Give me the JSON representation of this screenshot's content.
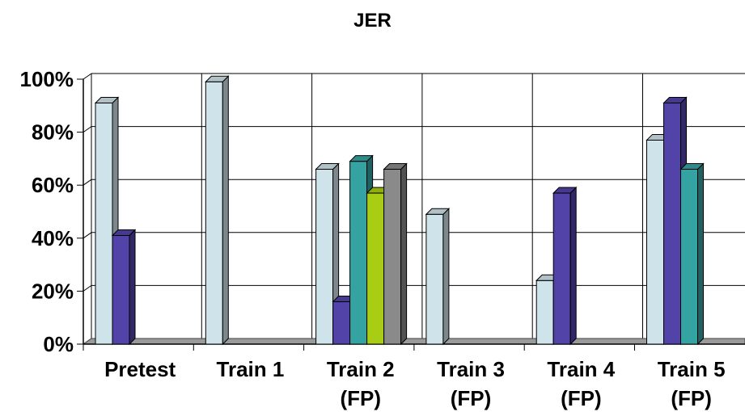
{
  "chart_data": {
    "type": "bar",
    "title": "JER",
    "xlabel": "",
    "ylabel": "",
    "ylim": [
      0,
      100
    ],
    "yticks": [
      "0%",
      "20%",
      "40%",
      "60%",
      "80%",
      "100%"
    ],
    "grid": true,
    "legend": "none",
    "categories": [
      [
        "Pretest"
      ],
      [
        "Train 1"
      ],
      [
        "Train 2",
        "(FP)"
      ],
      [
        "Train 3",
        "(FP)"
      ],
      [
        "Train 4",
        "(FP)"
      ],
      [
        "Train 5",
        "(FP)"
      ]
    ],
    "series": [
      {
        "color": "#cfe3ea",
        "values": [
          91,
          99,
          66,
          49,
          24,
          77
        ]
      },
      {
        "color": "#5243a8",
        "values": [
          41,
          0,
          16,
          0,
          57,
          91
        ]
      },
      {
        "color": "#36a3a3",
        "values": [
          0,
          0,
          69,
          0,
          0,
          66
        ]
      },
      {
        "color": "#a9cc14",
        "values": [
          0,
          0,
          57,
          0,
          0,
          0
        ]
      },
      {
        "color": "#8a8a8a",
        "values": [
          0,
          0,
          66,
          0,
          0,
          0
        ]
      }
    ]
  }
}
